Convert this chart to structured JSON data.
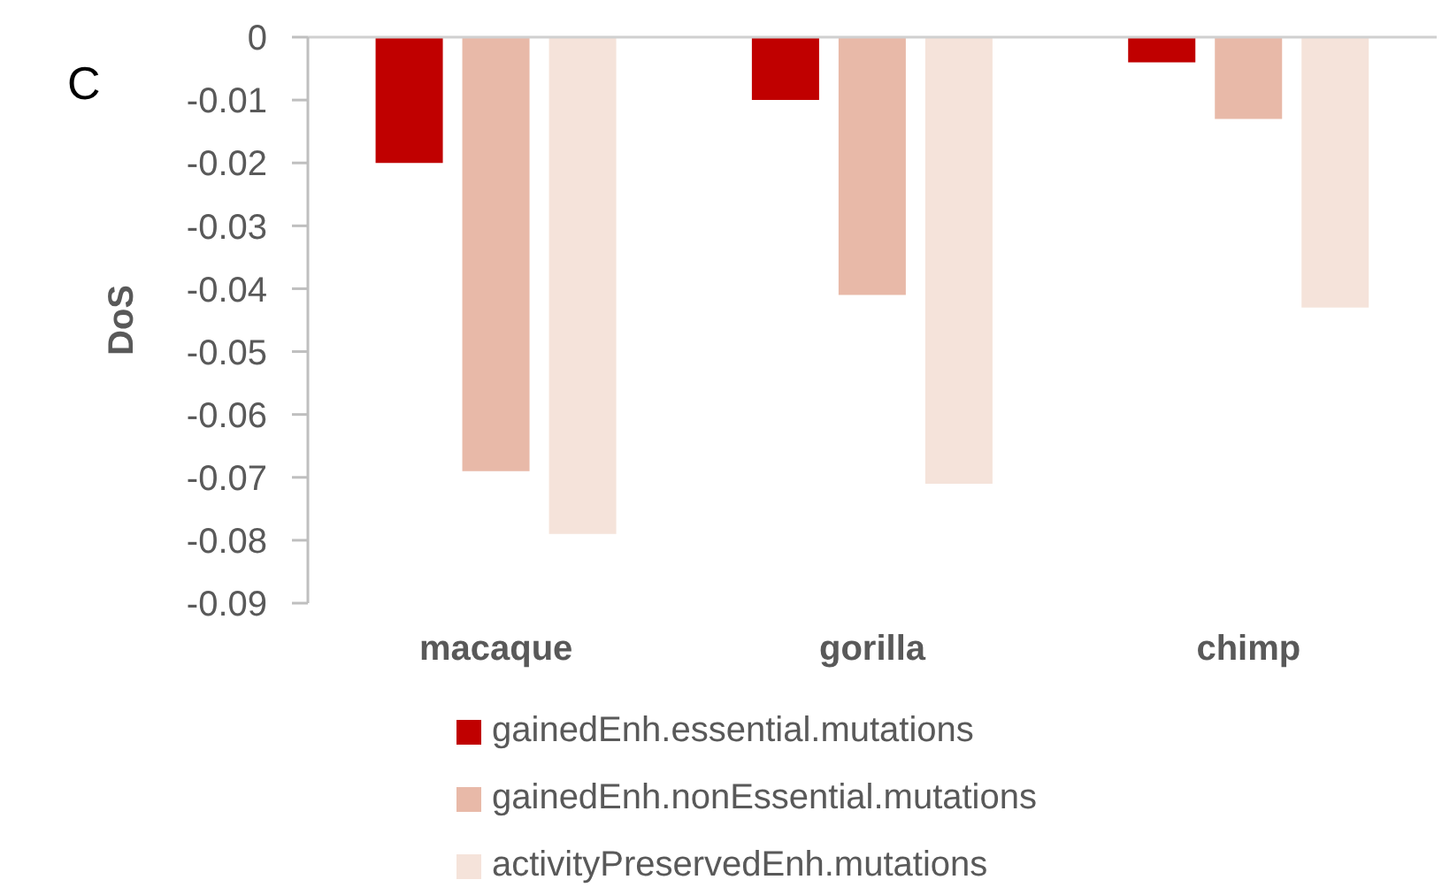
{
  "chart_data": {
    "type": "bar",
    "title": "C",
    "ylabel": "DoS",
    "categories": [
      "macaque",
      "gorilla",
      "chimp"
    ],
    "series": [
      {
        "name": "gainedEnh.essential.mutations",
        "color": "#c00000",
        "values": [
          -0.02,
          -0.01,
          -0.004
        ]
      },
      {
        "name": "gainedEnh.nonEssential.mutations",
        "color": "#e8b9a8",
        "values": [
          -0.069,
          -0.041,
          -0.013
        ]
      },
      {
        "name": "activityPreservedEnh.mutations",
        "color": "#f5e3da",
        "values": [
          -0.079,
          -0.071,
          -0.043
        ]
      }
    ],
    "ylim": [
      -0.09,
      0
    ],
    "yticks": [
      0,
      -0.01,
      -0.02,
      -0.03,
      -0.04,
      -0.05,
      -0.06,
      -0.07,
      -0.08,
      -0.09
    ],
    "legend": "bottom"
  }
}
